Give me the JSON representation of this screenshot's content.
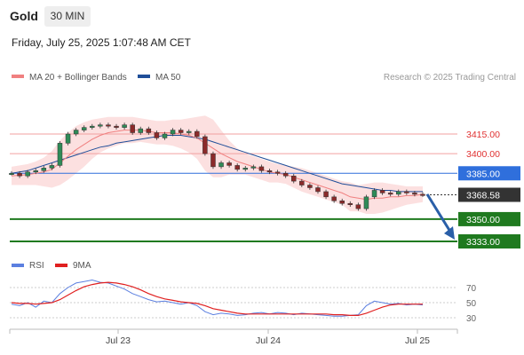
{
  "header": {
    "asset": "Gold",
    "timeframe": "30 MIN",
    "datetime": "Friday, July 25, 2025 1:07:48 AM CET"
  },
  "legend": {
    "ma20_bb": "MA 20 + Bollinger Bands",
    "ma50": "MA 50",
    "attribution": "Research © 2025 Trading Central",
    "colors": {
      "ma20": "#f08080",
      "ma50": "#1f4e99",
      "band": "#fbd5d5"
    }
  },
  "rsi_legend": {
    "rsi": "RSI",
    "ma9": "9MA",
    "colors": {
      "rsi": "#5b7fe0",
      "ma9": "#e02020"
    }
  },
  "chart_data": {
    "type": "candlestick",
    "timeframe": "30 MIN",
    "x_ticks": [
      "Jul 23",
      "Jul 24",
      "Jul 25"
    ],
    "price_axis": {
      "ylim": [
        3330,
        3430
      ]
    },
    "last_price": 3368.58,
    "levels": [
      {
        "value": 3415.0,
        "label": "3415.00",
        "kind": "resistance",
        "color": "#e03030",
        "line": "#f2a0a0"
      },
      {
        "value": 3400.0,
        "label": "3400.00",
        "kind": "resistance",
        "color": "#e03030",
        "line": "#f2a0a0"
      },
      {
        "value": 3385.0,
        "label": "3385.00",
        "kind": "pivot",
        "color": "#2f6fdc",
        "line": "#2f6fdc"
      },
      {
        "value": 3350.0,
        "label": "3350.00",
        "kind": "support",
        "color": "#1f7a1f",
        "line": "#1f7a1f"
      },
      {
        "value": 3333.0,
        "label": "3333.00",
        "kind": "support",
        "color": "#1f7a1f",
        "line": "#1f7a1f"
      }
    ],
    "forecast": {
      "from": 3369,
      "to": 3333,
      "color": "#2a5fa8"
    },
    "price_series": [
      3385,
      3383,
      3386,
      3387,
      3389,
      3391,
      3408,
      3415,
      3418,
      3420,
      3421,
      3422,
      3421,
      3420,
      3422,
      3416,
      3419,
      3416,
      3412,
      3415,
      3418,
      3416,
      3417,
      3413,
      3400,
      3390,
      3393,
      3391,
      3388,
      3389,
      3390,
      3387,
      3386,
      3385,
      3383,
      3379,
      3376,
      3374,
      3371,
      3367,
      3364,
      3362,
      3361,
      3358,
      3367,
      3372,
      3370,
      3369,
      3371,
      3370,
      3369,
      3368.58
    ],
    "ma20_series": [
      3383,
      3383.5,
      3384,
      3385,
      3386,
      3388,
      3393,
      3398,
      3403,
      3407,
      3411,
      3414,
      3416,
      3417,
      3418,
      3418,
      3418,
      3417,
      3416,
      3416,
      3416,
      3415,
      3414,
      3412,
      3408,
      3404,
      3400,
      3397,
      3394,
      3392,
      3390,
      3388,
      3386,
      3385,
      3384,
      3382,
      3380,
      3378,
      3376,
      3374,
      3372,
      3370,
      3367,
      3366,
      3365,
      3366,
      3366,
      3367,
      3367,
      3368,
      3368,
      3369
    ],
    "bb_upper": [
      3390,
      3391,
      3392,
      3394,
      3397,
      3402,
      3410,
      3416,
      3421,
      3424,
      3426,
      3427,
      3428,
      3428,
      3428,
      3428,
      3427,
      3426,
      3425,
      3425,
      3426,
      3426,
      3427,
      3428,
      3429,
      3426,
      3418,
      3410,
      3404,
      3400,
      3398,
      3396,
      3394,
      3392,
      3391,
      3390,
      3389,
      3387,
      3385,
      3383,
      3381,
      3379,
      3378,
      3376,
      3377,
      3378,
      3378,
      3377,
      3376,
      3375,
      3375,
      3375
    ],
    "bb_lower": [
      3376,
      3376,
      3376,
      3376,
      3375,
      3374,
      3376,
      3380,
      3385,
      3390,
      3396,
      3401,
      3404,
      3406,
      3408,
      3408,
      3409,
      3408,
      3407,
      3407,
      3406,
      3404,
      3401,
      3396,
      3387,
      3382,
      3382,
      3384,
      3384,
      3384,
      3382,
      3380,
      3378,
      3378,
      3377,
      3374,
      3371,
      3369,
      3367,
      3365,
      3363,
      3361,
      3356,
      3356,
      3354,
      3354,
      3355,
      3357,
      3359,
      3361,
      3362,
      3363
    ],
    "ma50_series": [
      3385,
      3386,
      3387,
      3389,
      3391,
      3393,
      3395,
      3397,
      3399,
      3401,
      3403,
      3405,
      3406,
      3408,
      3409,
      3410,
      3411,
      3412,
      3413,
      3414,
      3414,
      3414,
      3413,
      3412,
      3411,
      3409,
      3407,
      3405,
      3403,
      3401,
      3399,
      3397,
      3395,
      3393,
      3391,
      3389,
      3387,
      3385,
      3383,
      3381,
      3379,
      3377,
      3376,
      3375,
      3374,
      3373,
      3372,
      3372,
      3371,
      3371,
      3371,
      3371
    ],
    "rsi": {
      "ylim": [
        20,
        80
      ],
      "levels": [
        70,
        50,
        30
      ],
      "rsi_series": [
        48,
        46,
        50,
        44,
        52,
        50,
        62,
        70,
        76,
        78,
        80,
        77,
        76,
        72,
        68,
        62,
        58,
        54,
        51,
        52,
        50,
        48,
        50,
        46,
        38,
        34,
        36,
        35,
        33,
        34,
        36,
        37,
        35,
        37,
        36,
        34,
        36,
        35,
        34,
        33,
        32,
        32,
        33,
        34,
        46,
        52,
        50,
        48,
        49,
        47,
        48,
        47
      ],
      "ma9_series": [
        50,
        49,
        49,
        48,
        49,
        50,
        54,
        60,
        66,
        71,
        74,
        76,
        77,
        76,
        74,
        71,
        67,
        62,
        58,
        55,
        53,
        51,
        50,
        49,
        46,
        42,
        40,
        38,
        36,
        35,
        35,
        35,
        35,
        35,
        35,
        35,
        35,
        35,
        35,
        35,
        34,
        34,
        33,
        33,
        36,
        40,
        44,
        47,
        48,
        48,
        48,
        48
      ]
    }
  }
}
